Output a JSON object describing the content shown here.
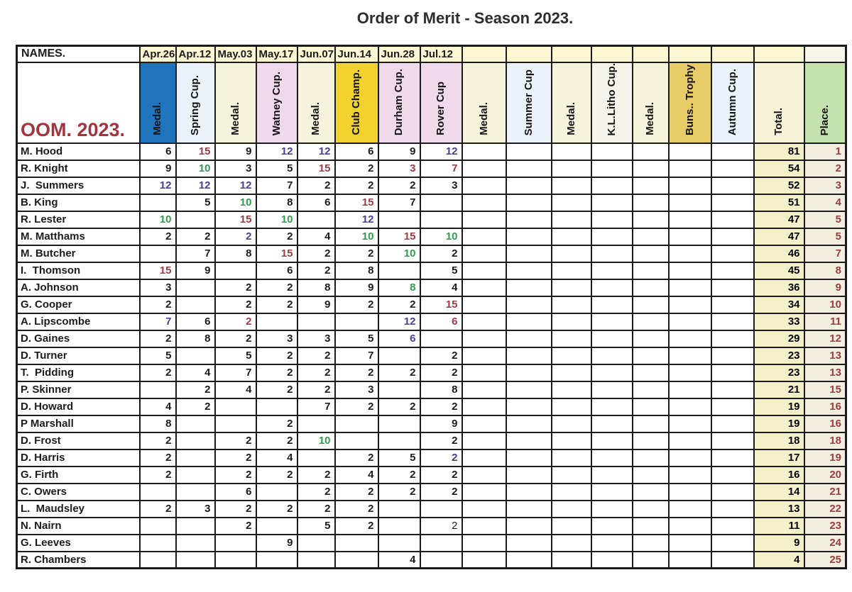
{
  "title": "Order of Merit - Season 2023.",
  "table": {
    "names_header": "NAMES.",
    "oom_label": "OOM. 2023.",
    "date_row": [
      "Apr.26",
      "Apr.12",
      "May.03",
      "May.17",
      "Jun.07",
      "Jun.14",
      "Jun.28",
      "Jul.12",
      "",
      "",
      "",
      "",
      "",
      "",
      "",
      "",
      ""
    ],
    "columns": [
      {
        "label": "Medal.",
        "bg": "#1f74bb"
      },
      {
        "label": "Spring Cup.",
        "bg": "#ecf2f9"
      },
      {
        "label": "Medal.",
        "bg": "#f6f3dc"
      },
      {
        "label": "Watney Cup.",
        "bg": "#f1d9ec"
      },
      {
        "label": "Medal.",
        "bg": "#f6f3dc"
      },
      {
        "label": "Club Champ.",
        "bg": "#f2d22e"
      },
      {
        "label": "Durham Cup.",
        "bg": "#f1d9ec"
      },
      {
        "label": "Rover Cup",
        "bg": "#f1d9ec"
      },
      {
        "label": "Medal.",
        "bg": "#f6f3dc"
      },
      {
        "label": "Summer Cup",
        "bg": "#ecf2f9"
      },
      {
        "label": "Medal.",
        "bg": "#f6f3dc"
      },
      {
        "label": "K.L.Litho Cup.",
        "bg": "#f5f3ea"
      },
      {
        "label": "Medal.",
        "bg": "#f6f3dc"
      },
      {
        "label": "Buns.. Trophy",
        "bg": "#e8cc68"
      },
      {
        "label": "Autumn Cup.",
        "bg": "#ecf2f9"
      },
      {
        "label": "Total.",
        "bg": "#f6f3d8"
      },
      {
        "label": "Place.",
        "bg": "#c4e2ae"
      }
    ],
    "players": [
      {
        "name": "M. Hood",
        "scores": [
          [
            "6",
            "black"
          ],
          [
            "15",
            "red"
          ],
          [
            "9",
            "black"
          ],
          [
            "12",
            "purple"
          ],
          [
            "12",
            "purple"
          ],
          [
            "6",
            "black"
          ],
          [
            "9",
            "black"
          ],
          [
            "12",
            "purple"
          ]
        ],
        "total": "81",
        "place": "1"
      },
      {
        "name": "R. Knight",
        "scores": [
          [
            "9",
            "black"
          ],
          [
            "10",
            "green"
          ],
          [
            "3",
            "black"
          ],
          [
            "5",
            "black"
          ],
          [
            "15",
            "red"
          ],
          [
            "2",
            "black"
          ],
          [
            "3",
            "red"
          ],
          [
            "7",
            "red"
          ]
        ],
        "total": "54",
        "place": "2"
      },
      {
        "name": "J.  Summers",
        "scores": [
          [
            "12",
            "purple"
          ],
          [
            "12",
            "purple"
          ],
          [
            "12",
            "purple"
          ],
          [
            "7",
            "black"
          ],
          [
            "2",
            "black"
          ],
          [
            "2",
            "black"
          ],
          [
            "2",
            "black"
          ],
          [
            "3",
            "black"
          ]
        ],
        "total": "52",
        "place": "3"
      },
      {
        "name": "B. King",
        "scores": [
          null,
          [
            "5",
            "black"
          ],
          [
            "10",
            "green"
          ],
          [
            "8",
            "black"
          ],
          [
            "6",
            "black"
          ],
          [
            "15",
            "red"
          ],
          [
            "7",
            "black"
          ],
          null
        ],
        "total": "51",
        "place": "4"
      },
      {
        "name": "R. Lester",
        "scores": [
          [
            "10",
            "green"
          ],
          null,
          [
            "15",
            "red"
          ],
          [
            "10",
            "green"
          ],
          null,
          [
            "12",
            "purple"
          ],
          null,
          null
        ],
        "total": "47",
        "place": "5"
      },
      {
        "name": "M. Matthams",
        "scores": [
          [
            "2",
            "black"
          ],
          [
            "2",
            "black"
          ],
          [
            "2",
            "purple"
          ],
          [
            "2",
            "black"
          ],
          [
            "4",
            "black"
          ],
          [
            "10",
            "green"
          ],
          [
            "15",
            "red"
          ],
          [
            "10",
            "green"
          ]
        ],
        "total": "47",
        "place": "5"
      },
      {
        "name": "M. Butcher",
        "scores": [
          null,
          [
            "7",
            "black"
          ],
          [
            "8",
            "black"
          ],
          [
            "15",
            "red"
          ],
          [
            "2",
            "black"
          ],
          [
            "2",
            "black"
          ],
          [
            "10",
            "green"
          ],
          [
            "2",
            "black"
          ]
        ],
        "total": "46",
        "place": "7"
      },
      {
        "name": "I.  Thomson",
        "scores": [
          [
            "15",
            "red"
          ],
          [
            "9",
            "black"
          ],
          null,
          [
            "6",
            "black"
          ],
          [
            "2",
            "black"
          ],
          [
            "8",
            "black"
          ],
          null,
          [
            "5",
            "black"
          ]
        ],
        "total": "45",
        "place": "8"
      },
      {
        "name": "A. Johnson",
        "scores": [
          [
            "3",
            "black"
          ],
          null,
          [
            "2",
            "black"
          ],
          [
            "2",
            "black"
          ],
          [
            "8",
            "black"
          ],
          [
            "9",
            "black"
          ],
          [
            "8",
            "green"
          ],
          [
            "4",
            "black"
          ]
        ],
        "total": "36",
        "place": "9"
      },
      {
        "name": "G. Cooper",
        "scores": [
          [
            "2",
            "black"
          ],
          null,
          [
            "2",
            "black"
          ],
          [
            "2",
            "black"
          ],
          [
            "9",
            "black"
          ],
          [
            "2",
            "black"
          ],
          [
            "2",
            "black"
          ],
          [
            "15",
            "red"
          ]
        ],
        "total": "34",
        "place": "10"
      },
      {
        "name": "A. Lipscombe",
        "scores": [
          [
            "7",
            "purple"
          ],
          [
            "6",
            "black"
          ],
          [
            "2",
            "red"
          ],
          null,
          null,
          null,
          [
            "12",
            "purple"
          ],
          [
            "6",
            "red"
          ]
        ],
        "total": "33",
        "place": "11"
      },
      {
        "name": "D. Gaines",
        "scores": [
          [
            "2",
            "black"
          ],
          [
            "8",
            "black"
          ],
          [
            "2",
            "black"
          ],
          [
            "3",
            "black"
          ],
          [
            "3",
            "black"
          ],
          [
            "5",
            "black"
          ],
          [
            "6",
            "purple"
          ],
          null
        ],
        "total": "29",
        "place": "12"
      },
      {
        "name": "D. Turner",
        "scores": [
          [
            "5",
            "black"
          ],
          null,
          [
            "5",
            "black"
          ],
          [
            "2",
            "black"
          ],
          [
            "2",
            "black"
          ],
          [
            "7",
            "black"
          ],
          null,
          [
            "2",
            "black"
          ]
        ],
        "total": "23",
        "place": "13"
      },
      {
        "name": "T.  Pidding",
        "scores": [
          [
            "2",
            "black"
          ],
          [
            "4",
            "black"
          ],
          [
            "7",
            "black"
          ],
          [
            "2",
            "black"
          ],
          [
            "2",
            "black"
          ],
          [
            "2",
            "black"
          ],
          [
            "2",
            "black"
          ],
          [
            "2",
            "black"
          ]
        ],
        "total": "23",
        "place": "13"
      },
      {
        "name": "P. Skinner",
        "scores": [
          null,
          [
            "2",
            "black"
          ],
          [
            "4",
            "black"
          ],
          [
            "2",
            "black"
          ],
          [
            "2",
            "black"
          ],
          [
            "3",
            "black"
          ],
          null,
          [
            "8",
            "black"
          ]
        ],
        "total": "21",
        "place": "15"
      },
      {
        "name": "D. Howard",
        "scores": [
          [
            "4",
            "black"
          ],
          [
            "2",
            "black"
          ],
          null,
          null,
          [
            "7",
            "black"
          ],
          [
            "2",
            "black"
          ],
          [
            "2",
            "black"
          ],
          [
            "2",
            "black"
          ]
        ],
        "total": "19",
        "place": "16"
      },
      {
        "name": "P Marshall",
        "scores": [
          [
            "8",
            "black"
          ],
          null,
          null,
          [
            "2",
            "black"
          ],
          null,
          null,
          null,
          [
            "9",
            "black"
          ]
        ],
        "total": "19",
        "place": "16"
      },
      {
        "name": "D. Frost",
        "scores": [
          [
            "2",
            "black"
          ],
          null,
          [
            "2",
            "black"
          ],
          [
            "2",
            "black"
          ],
          [
            "10",
            "green"
          ],
          null,
          null,
          [
            "2",
            "black"
          ]
        ],
        "total": "18",
        "place": "18"
      },
      {
        "name": "D. Harris",
        "scores": [
          [
            "2",
            "black"
          ],
          null,
          [
            "2",
            "black"
          ],
          [
            "4",
            "black"
          ],
          null,
          [
            "2",
            "black"
          ],
          [
            "5",
            "black"
          ],
          [
            "2",
            "purple"
          ]
        ],
        "total": "17",
        "place": "19"
      },
      {
        "name": "G. Firth",
        "scores": [
          [
            "2",
            "black"
          ],
          null,
          [
            "2",
            "black"
          ],
          [
            "2",
            "black"
          ],
          [
            "2",
            "black"
          ],
          [
            "4",
            "black"
          ],
          [
            "2",
            "black"
          ],
          [
            "2",
            "black"
          ]
        ],
        "total": "16",
        "place": "20"
      },
      {
        "name": "C. Owers",
        "scores": [
          null,
          null,
          [
            "6",
            "black"
          ],
          null,
          [
            "2",
            "black"
          ],
          [
            "2",
            "black"
          ],
          [
            "2",
            "black"
          ],
          [
            "2",
            "black"
          ]
        ],
        "total": "14",
        "place": "21"
      },
      {
        "name": "L.  Maudsley",
        "scores": [
          [
            "2",
            "black"
          ],
          [
            "3",
            "black"
          ],
          [
            "2",
            "black"
          ],
          [
            "2",
            "black"
          ],
          [
            "2",
            "black"
          ],
          [
            "2",
            "black"
          ],
          null,
          null
        ],
        "total": "13",
        "place": "22"
      },
      {
        "name": "N. Nairn",
        "scores": [
          null,
          null,
          [
            "2",
            "black"
          ],
          null,
          [
            "5",
            "black"
          ],
          [
            "2",
            "black"
          ],
          null,
          [
            "2",
            "plain"
          ]
        ],
        "total": "11",
        "place": "23"
      },
      {
        "name": "G. Leeves",
        "scores": [
          null,
          null,
          null,
          [
            "9",
            "black"
          ],
          null,
          null,
          null,
          null
        ],
        "total": "9",
        "place": "24"
      },
      {
        "name": "R. Chambers",
        "scores": [
          null,
          null,
          null,
          null,
          null,
          null,
          [
            "4",
            "black"
          ],
          null
        ],
        "total": "4",
        "place": "25"
      }
    ]
  },
  "score_colors": {
    "black": "#1c1c1c",
    "red": "#a03b42",
    "purple": "#4a3f93",
    "green": "#2f9d4c",
    "plain": "#1c1c1c"
  },
  "accent_colors": {
    "oom_text": "#a4343c",
    "place_text": "#a03b42",
    "title_text": "#2d2d2d",
    "medal_blue": "#1f74bb",
    "place_green": "#c4e2ae"
  }
}
